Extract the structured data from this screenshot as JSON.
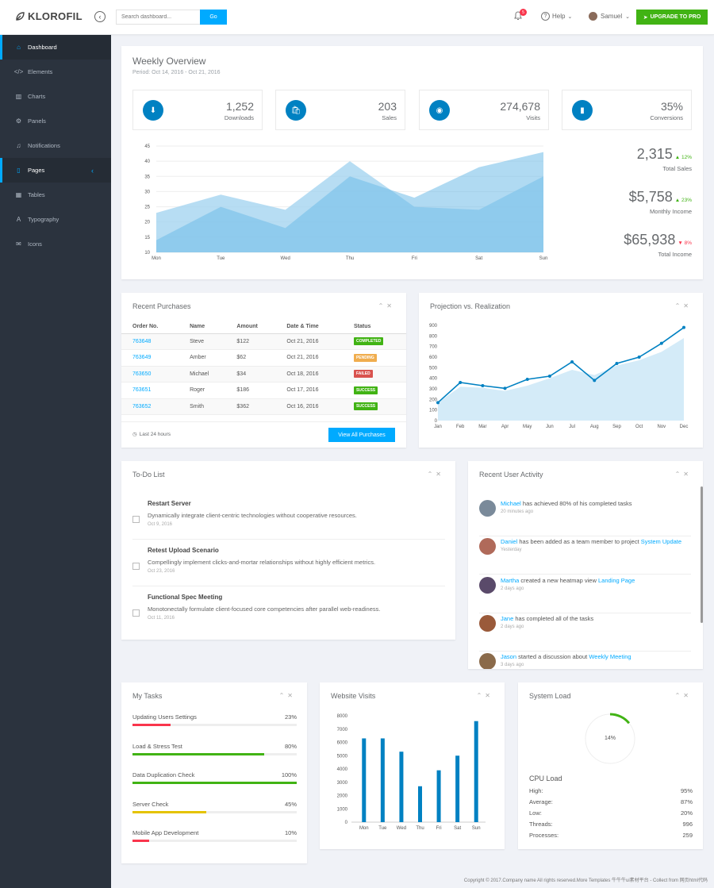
{
  "brand": {
    "name": "KLOROFIL"
  },
  "topbar": {
    "search_placeholder": "Search dashboard...",
    "go_label": "Go",
    "notification_count": "5",
    "help_label": "Help",
    "user_name": "Samuel",
    "upgrade_label": "UPGRADE TO PRO"
  },
  "sidebar": {
    "items": [
      {
        "label": "Dashboard",
        "icon": "home-icon"
      },
      {
        "label": "Elements",
        "icon": "code-icon"
      },
      {
        "label": "Charts",
        "icon": "chart-bars-icon"
      },
      {
        "label": "Panels",
        "icon": "cog-icon"
      },
      {
        "label": "Notifications",
        "icon": "alarm-icon"
      },
      {
        "label": "Pages",
        "icon": "file-icon"
      },
      {
        "label": "Tables",
        "icon": "table-icon"
      },
      {
        "label": "Typography",
        "icon": "text-format-icon"
      },
      {
        "label": "Icons",
        "icon": "linearicons-icon"
      }
    ]
  },
  "overview": {
    "title": "Weekly Overview",
    "period": "Period: Oct 14, 2016 - Oct 21, 2016",
    "metrics": [
      {
        "value": "1,252",
        "label": "Downloads",
        "icon": "download-icon"
      },
      {
        "value": "203",
        "label": "Sales",
        "icon": "shopping-bag-icon"
      },
      {
        "value": "274,678",
        "label": "Visits",
        "icon": "eye-icon"
      },
      {
        "value": "35%",
        "label": "Conversions",
        "icon": "bar-chart-icon"
      }
    ],
    "stats": [
      {
        "value": "2,315",
        "pct": "12%",
        "dir": "up",
        "label": "Total Sales"
      },
      {
        "value": "$5,758",
        "pct": "23%",
        "dir": "up",
        "label": "Monthly Income"
      },
      {
        "value": "$65,938",
        "pct": "8%",
        "dir": "down",
        "label": "Total Income"
      }
    ]
  },
  "purchases": {
    "title": "Recent Purchases",
    "headers": [
      "Order No.",
      "Name",
      "Amount",
      "Date & Time",
      "Status"
    ],
    "rows": [
      {
        "order": "763648",
        "name": "Steve",
        "amount": "$122",
        "date": "Oct 21, 2016",
        "status": "COMPLETED",
        "color": "#41b314"
      },
      {
        "order": "763649",
        "name": "Amber",
        "amount": "$62",
        "date": "Oct 21, 2016",
        "status": "PENDING",
        "color": "#f0ad4e"
      },
      {
        "order": "763650",
        "name": "Michael",
        "amount": "$34",
        "date": "Oct 18, 2016",
        "status": "FAILED",
        "color": "#d9534f"
      },
      {
        "order": "763651",
        "name": "Roger",
        "amount": "$186",
        "date": "Oct 17, 2016",
        "status": "SUCCESS",
        "color": "#41b314"
      },
      {
        "order": "763652",
        "name": "Smith",
        "amount": "$362",
        "date": "Oct 16, 2016",
        "status": "SUCCESS",
        "color": "#41b314"
      }
    ],
    "footer_note": "Last 24 hours",
    "view_all": "View All Purchases"
  },
  "projection": {
    "title": "Projection vs. Realization"
  },
  "todo": {
    "title": "To-Do List",
    "items": [
      {
        "title": "Restart Server",
        "desc": "Dynamically integrate client-centric technologies without cooperative resources.",
        "date": "Oct 9, 2016"
      },
      {
        "title": "Retest Upload Scenario",
        "desc": "Compellingly implement clicks-and-mortar relationships without highly efficient metrics.",
        "date": "Oct 23, 2016"
      },
      {
        "title": "Functional Spec Meeting",
        "desc": "Monotonectally formulate client-focused core competencies after parallel web-readiness.",
        "date": "Oct 11, 2016"
      }
    ]
  },
  "activity": {
    "title": "Recent User Activity",
    "items": [
      {
        "name": "Michael",
        "text": " has achieved 80% of his completed tasks",
        "link": "",
        "time": "20 minutes ago",
        "color": "#7a8a9a"
      },
      {
        "name": "Daniel",
        "text": " has been added as a team member to project ",
        "link": "System Update",
        "time": "Yesterday",
        "color": "#b06a5a"
      },
      {
        "name": "Martha",
        "text": " created a new heatmap view ",
        "link": "Landing Page",
        "time": "2 days ago",
        "color": "#5a4a6a"
      },
      {
        "name": "Jane",
        "text": " has completed all of the tasks",
        "link": "",
        "time": "2 days ago",
        "color": "#9a5a3a"
      },
      {
        "name": "Jason",
        "text": " started a discussion about ",
        "link": "Weekly Meeting",
        "time": "3 days ago",
        "color": "#8a6a4a"
      }
    ]
  },
  "tasks": {
    "title": "My Tasks",
    "items": [
      {
        "name": "Updating Users Settings",
        "pct": "23%",
        "fraction": 0.23,
        "color": "#f9354c"
      },
      {
        "name": "Load & Stress Test",
        "pct": "80%",
        "fraction": 0.8,
        "color": "#41b314"
      },
      {
        "name": "Data Duplication Check",
        "pct": "100%",
        "fraction": 1.0,
        "color": "#41b314"
      },
      {
        "name": "Server Check",
        "pct": "45%",
        "fraction": 0.45,
        "color": "#e5c300"
      },
      {
        "name": "Mobile App Development",
        "pct": "10%",
        "fraction": 0.1,
        "color": "#f9354c"
      }
    ]
  },
  "visits": {
    "title": "Website Visits"
  },
  "sysload": {
    "title": "System Load",
    "gauge_text": "14%",
    "gauge_fraction": 0.14,
    "cpu_title": "CPU Load",
    "rows": [
      {
        "label": "High:",
        "value": "95%"
      },
      {
        "label": "Average:",
        "value": "87%"
      },
      {
        "label": "Low:",
        "value": "20%"
      },
      {
        "label": "Threads:",
        "value": "996"
      },
      {
        "label": "Processes:",
        "value": "259"
      }
    ]
  },
  "footer": {
    "text": "Copyright © 2017.Company name All rights reserved.More Templates 牛牛牛ui素材平台 - Collect from 网页html代码"
  },
  "colors": {
    "accent": "#00aaff",
    "primary": "#0081c2",
    "success": "#41b314",
    "danger": "#f9354c",
    "sidebar": "#2b333e"
  },
  "chart_data": [
    {
      "type": "area",
      "categories": [
        "Mon",
        "Tue",
        "Wed",
        "Thu",
        "Fri",
        "Sat",
        "Sun"
      ],
      "series": [
        {
          "values": [
            23,
            29,
            24,
            40,
            25,
            24,
            35
          ]
        },
        {
          "values": [
            14,
            25,
            18,
            35,
            28,
            38,
            43
          ]
        }
      ],
      "ylim": [
        10,
        45
      ],
      "yticks": [
        10,
        15,
        20,
        25,
        30,
        35,
        40,
        45
      ]
    },
    {
      "type": "line",
      "categories": [
        "Jan",
        "Feb",
        "Mar",
        "Apr",
        "May",
        "Jun",
        "Jul",
        "Aug",
        "Sep",
        "Oct",
        "Nov",
        "Dec"
      ],
      "series": [
        {
          "values": [
            170,
            360,
            330,
            305,
            390,
            420,
            555,
            380,
            540,
            600,
            730,
            880
          ]
        },
        {
          "values": [
            170,
            320,
            310,
            280,
            330,
            400,
            480,
            430,
            520,
            570,
            650,
            780
          ]
        }
      ],
      "ylim": [
        0,
        900
      ],
      "yticks": [
        0,
        100,
        200,
        300,
        400,
        500,
        600,
        700,
        800,
        900
      ]
    },
    {
      "type": "bar",
      "categories": [
        "Mon",
        "Tue",
        "Wed",
        "Thu",
        "Fri",
        "Sat",
        "Sun"
      ],
      "values": [
        6300,
        6300,
        5300,
        2700,
        3900,
        5000,
        7600
      ],
      "ylim": [
        0,
        8000
      ],
      "yticks": [
        0,
        1000,
        2000,
        3000,
        4000,
        5000,
        6000,
        7000,
        8000
      ]
    }
  ]
}
